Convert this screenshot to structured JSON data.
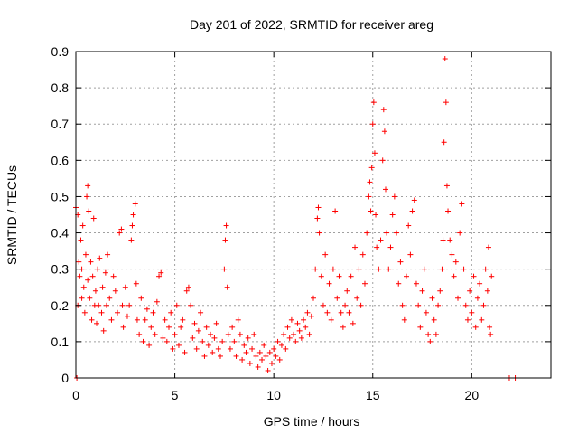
{
  "chart_data": {
    "type": "scatter",
    "title": "Day 201 of 2022, SRMTID for receiver areg",
    "xlabel": "GPS time / hours",
    "ylabel": "SRMTID / TECUs",
    "xlim": [
      0,
      24
    ],
    "ylim": [
      0,
      0.9
    ],
    "xticks": [
      0,
      5,
      10,
      15,
      20
    ],
    "yticks": [
      0,
      0.1,
      0.2,
      0.3,
      0.4,
      0.5,
      0.6,
      0.7,
      0.8,
      0.9
    ],
    "xtick_labels": [
      "0",
      "5",
      "10",
      "15",
      "20"
    ],
    "ytick_labels": [
      "0",
      "0.1",
      "0.2",
      "0.3",
      "0.4",
      "0.5",
      "0.6",
      "0.7",
      "0.8",
      "0.9"
    ],
    "grid": true,
    "marker": "+",
    "series": [
      {
        "name": "SRMTID",
        "color": "#ff0000",
        "points": [
          [
            0.0,
            0.47
          ],
          [
            0.05,
            0.0
          ],
          [
            0.1,
            0.45
          ],
          [
            0.1,
            0.2
          ],
          [
            0.15,
            0.32
          ],
          [
            0.2,
            0.28
          ],
          [
            0.25,
            0.38
          ],
          [
            0.3,
            0.3
          ],
          [
            0.3,
            0.22
          ],
          [
            0.35,
            0.42
          ],
          [
            0.4,
            0.25
          ],
          [
            0.45,
            0.18
          ],
          [
            0.5,
            0.34
          ],
          [
            0.55,
            0.5
          ],
          [
            0.6,
            0.53
          ],
          [
            0.6,
            0.27
          ],
          [
            0.65,
            0.46
          ],
          [
            0.7,
            0.22
          ],
          [
            0.75,
            0.32
          ],
          [
            0.8,
            0.16
          ],
          [
            0.85,
            0.28
          ],
          [
            0.9,
            0.44
          ],
          [
            0.95,
            0.2
          ],
          [
            1.0,
            0.24
          ],
          [
            1.05,
            0.15
          ],
          [
            1.1,
            0.3
          ],
          [
            1.15,
            0.2
          ],
          [
            1.2,
            0.33
          ],
          [
            1.3,
            0.18
          ],
          [
            1.35,
            0.25
          ],
          [
            1.4,
            0.13
          ],
          [
            1.5,
            0.29
          ],
          [
            1.55,
            0.2
          ],
          [
            1.6,
            0.34
          ],
          [
            1.7,
            0.22
          ],
          [
            1.8,
            0.16
          ],
          [
            1.9,
            0.28
          ],
          [
            2.0,
            0.24
          ],
          [
            2.1,
            0.18
          ],
          [
            2.2,
            0.4
          ],
          [
            2.3,
            0.41
          ],
          [
            2.35,
            0.2
          ],
          [
            2.4,
            0.14
          ],
          [
            2.5,
            0.25
          ],
          [
            2.6,
            0.17
          ],
          [
            2.7,
            0.2
          ],
          [
            2.8,
            0.38
          ],
          [
            2.85,
            0.42
          ],
          [
            2.9,
            0.45
          ],
          [
            3.0,
            0.48
          ],
          [
            3.05,
            0.26
          ],
          [
            3.1,
            0.16
          ],
          [
            3.2,
            0.12
          ],
          [
            3.3,
            0.22
          ],
          [
            3.4,
            0.1
          ],
          [
            3.5,
            0.16
          ],
          [
            3.6,
            0.19
          ],
          [
            3.7,
            0.09
          ],
          [
            3.8,
            0.14
          ],
          [
            3.9,
            0.18
          ],
          [
            4.0,
            0.12
          ],
          [
            4.1,
            0.21
          ],
          [
            4.2,
            0.28
          ],
          [
            4.3,
            0.29
          ],
          [
            4.4,
            0.11
          ],
          [
            4.5,
            0.16
          ],
          [
            4.6,
            0.1
          ],
          [
            4.7,
            0.14
          ],
          [
            4.8,
            0.18
          ],
          [
            4.9,
            0.08
          ],
          [
            5.0,
            0.12
          ],
          [
            5.1,
            0.2
          ],
          [
            5.2,
            0.09
          ],
          [
            5.3,
            0.14
          ],
          [
            5.4,
            0.16
          ],
          [
            5.5,
            0.07
          ],
          [
            5.6,
            0.24
          ],
          [
            5.7,
            0.25
          ],
          [
            5.8,
            0.2
          ],
          [
            5.9,
            0.11
          ],
          [
            6.0,
            0.15
          ],
          [
            6.1,
            0.08
          ],
          [
            6.2,
            0.13
          ],
          [
            6.3,
            0.18
          ],
          [
            6.4,
            0.1
          ],
          [
            6.5,
            0.06
          ],
          [
            6.6,
            0.14
          ],
          [
            6.7,
            0.09
          ],
          [
            6.8,
            0.12
          ],
          [
            6.9,
            0.07
          ],
          [
            7.0,
            0.11
          ],
          [
            7.1,
            0.15
          ],
          [
            7.2,
            0.08
          ],
          [
            7.3,
            0.06
          ],
          [
            7.4,
            0.1
          ],
          [
            7.5,
            0.3
          ],
          [
            7.55,
            0.38
          ],
          [
            7.6,
            0.42
          ],
          [
            7.65,
            0.25
          ],
          [
            7.7,
            0.12
          ],
          [
            7.8,
            0.08
          ],
          [
            7.9,
            0.14
          ],
          [
            8.0,
            0.1
          ],
          [
            8.1,
            0.06
          ],
          [
            8.2,
            0.16
          ],
          [
            8.3,
            0.12
          ],
          [
            8.4,
            0.05
          ],
          [
            8.5,
            0.09
          ],
          [
            8.6,
            0.07
          ],
          [
            8.7,
            0.11
          ],
          [
            8.8,
            0.04
          ],
          [
            8.9,
            0.08
          ],
          [
            9.0,
            0.12
          ],
          [
            9.1,
            0.06
          ],
          [
            9.2,
            0.03
          ],
          [
            9.3,
            0.07
          ],
          [
            9.4,
            0.05
          ],
          [
            9.5,
            0.09
          ],
          [
            9.6,
            0.06
          ],
          [
            9.7,
            0.02
          ],
          [
            9.8,
            0.07
          ],
          [
            9.9,
            0.04
          ],
          [
            10.0,
            0.08
          ],
          [
            10.1,
            0.06
          ],
          [
            10.2,
            0.1
          ],
          [
            10.3,
            0.05
          ],
          [
            10.4,
            0.09
          ],
          [
            10.5,
            0.12
          ],
          [
            10.6,
            0.08
          ],
          [
            10.7,
            0.14
          ],
          [
            10.8,
            0.11
          ],
          [
            10.9,
            0.16
          ],
          [
            11.0,
            0.12
          ],
          [
            11.1,
            0.1
          ],
          [
            11.2,
            0.15
          ],
          [
            11.3,
            0.13
          ],
          [
            11.4,
            0.11
          ],
          [
            11.5,
            0.16
          ],
          [
            11.6,
            0.14
          ],
          [
            11.7,
            0.18
          ],
          [
            11.8,
            0.12
          ],
          [
            11.9,
            0.17
          ],
          [
            12.0,
            0.22
          ],
          [
            12.1,
            0.3
          ],
          [
            12.2,
            0.44
          ],
          [
            12.25,
            0.47
          ],
          [
            12.3,
            0.4
          ],
          [
            12.4,
            0.28
          ],
          [
            12.5,
            0.2
          ],
          [
            12.6,
            0.34
          ],
          [
            12.7,
            0.18
          ],
          [
            12.8,
            0.26
          ],
          [
            12.9,
            0.16
          ],
          [
            13.0,
            0.3
          ],
          [
            13.1,
            0.46
          ],
          [
            13.2,
            0.22
          ],
          [
            13.3,
            0.28
          ],
          [
            13.4,
            0.18
          ],
          [
            13.5,
            0.14
          ],
          [
            13.6,
            0.2
          ],
          [
            13.7,
            0.24
          ],
          [
            13.8,
            0.18
          ],
          [
            13.9,
            0.28
          ],
          [
            14.0,
            0.15
          ],
          [
            14.1,
            0.36
          ],
          [
            14.2,
            0.22
          ],
          [
            14.3,
            0.3
          ],
          [
            14.4,
            0.2
          ],
          [
            14.5,
            0.34
          ],
          [
            14.6,
            0.26
          ],
          [
            14.7,
            0.4
          ],
          [
            14.8,
            0.5
          ],
          [
            14.85,
            0.54
          ],
          [
            14.9,
            0.46
          ],
          [
            14.95,
            0.58
          ],
          [
            15.0,
            0.7
          ],
          [
            15.05,
            0.76
          ],
          [
            15.1,
            0.62
          ],
          [
            15.15,
            0.45
          ],
          [
            15.2,
            0.36
          ],
          [
            15.3,
            0.3
          ],
          [
            15.4,
            0.38
          ],
          [
            15.5,
            0.6
          ],
          [
            15.55,
            0.74
          ],
          [
            15.6,
            0.68
          ],
          [
            15.65,
            0.52
          ],
          [
            15.7,
            0.4
          ],
          [
            15.8,
            0.3
          ],
          [
            15.9,
            0.36
          ],
          [
            16.0,
            0.45
          ],
          [
            16.1,
            0.5
          ],
          [
            16.2,
            0.4
          ],
          [
            16.3,
            0.26
          ],
          [
            16.4,
            0.32
          ],
          [
            16.5,
            0.2
          ],
          [
            16.6,
            0.16
          ],
          [
            16.7,
            0.28
          ],
          [
            16.8,
            0.42
          ],
          [
            16.9,
            0.34
          ],
          [
            17.0,
            0.46
          ],
          [
            17.1,
            0.49
          ],
          [
            17.2,
            0.26
          ],
          [
            17.3,
            0.2
          ],
          [
            17.4,
            0.14
          ],
          [
            17.5,
            0.24
          ],
          [
            17.6,
            0.3
          ],
          [
            17.7,
            0.18
          ],
          [
            17.8,
            0.12
          ],
          [
            17.9,
            0.1
          ],
          [
            18.0,
            0.22
          ],
          [
            18.1,
            0.16
          ],
          [
            18.2,
            0.12
          ],
          [
            18.3,
            0.2
          ],
          [
            18.4,
            0.24
          ],
          [
            18.5,
            0.3
          ],
          [
            18.55,
            0.38
          ],
          [
            18.6,
            0.65
          ],
          [
            18.65,
            0.88
          ],
          [
            18.7,
            0.76
          ],
          [
            18.75,
            0.53
          ],
          [
            18.8,
            0.46
          ],
          [
            18.9,
            0.38
          ],
          [
            19.0,
            0.34
          ],
          [
            19.1,
            0.28
          ],
          [
            19.2,
            0.32
          ],
          [
            19.3,
            0.22
          ],
          [
            19.4,
            0.4
          ],
          [
            19.5,
            0.48
          ],
          [
            19.6,
            0.3
          ],
          [
            19.7,
            0.2
          ],
          [
            19.8,
            0.16
          ],
          [
            19.9,
            0.24
          ],
          [
            20.0,
            0.18
          ],
          [
            20.1,
            0.28
          ],
          [
            20.2,
            0.14
          ],
          [
            20.3,
            0.22
          ],
          [
            20.4,
            0.26
          ],
          [
            20.5,
            0.16
          ],
          [
            20.6,
            0.2
          ],
          [
            20.7,
            0.3
          ],
          [
            20.8,
            0.24
          ],
          [
            20.85,
            0.36
          ],
          [
            20.9,
            0.14
          ],
          [
            20.95,
            0.12
          ],
          [
            21.0,
            0.28
          ],
          [
            21.9,
            0.0
          ],
          [
            22.2,
            0.0
          ]
        ]
      }
    ]
  }
}
